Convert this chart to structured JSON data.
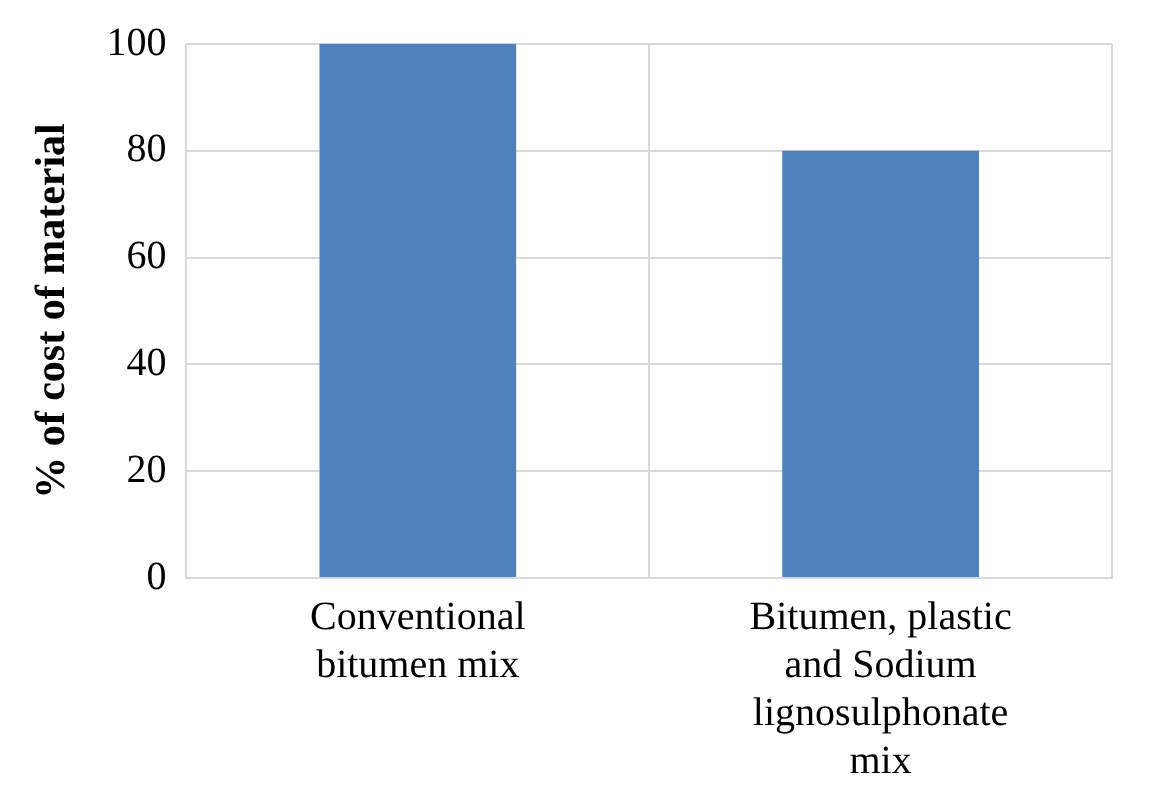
{
  "chart_data": {
    "type": "bar",
    "ylabel": "% of cost of material",
    "categories": [
      "Conventional bitumen mix",
      "Bitumen, plastic and Sodium lignosulphonate mix"
    ],
    "values": [
      100,
      80
    ],
    "color": "#4f81bd",
    "ylim": [
      0,
      100
    ],
    "yticks": [
      0,
      20,
      40,
      60,
      80,
      100
    ],
    "grid": true
  }
}
